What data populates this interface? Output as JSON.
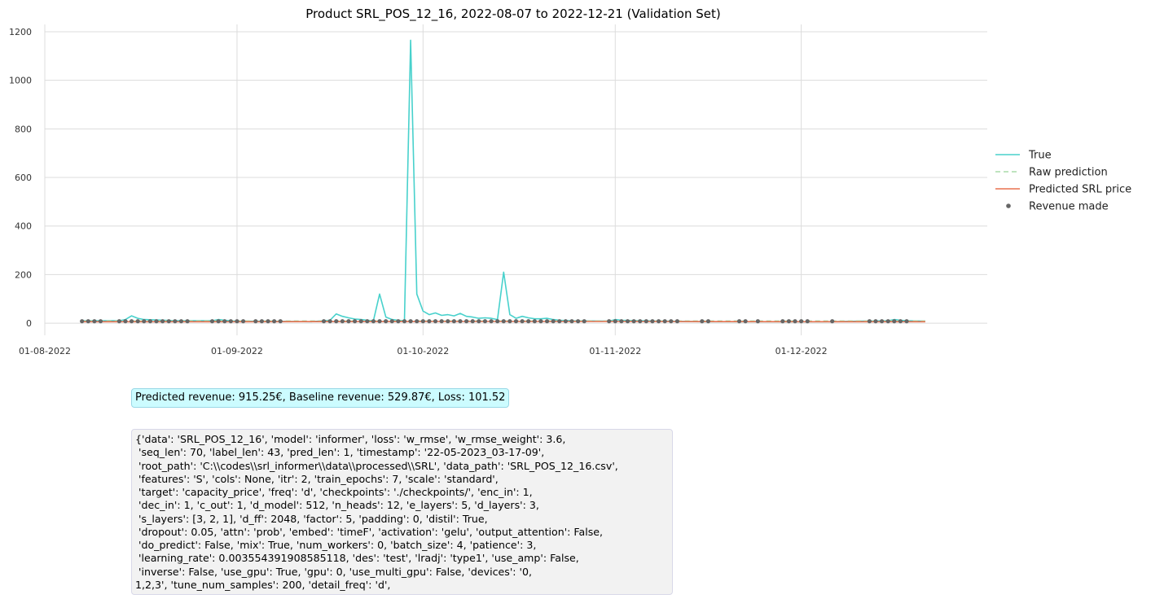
{
  "chart_data": {
    "type": "line",
    "title": "Product SRL_POS_12_16, 2022-08-07 to 2022-12-21 (Validation Set)",
    "xlabel": "",
    "ylabel": "",
    "x_range": [
      "2022-08-01",
      "2022-12-31"
    ],
    "ylim": [
      -50,
      1230
    ],
    "yticks": [
      0,
      200,
      400,
      600,
      800,
      1000,
      1200
    ],
    "xticks": [
      {
        "date": "2022-08-01",
        "label": "01-08-2022"
      },
      {
        "date": "2022-09-01",
        "label": "01-09-2022"
      },
      {
        "date": "2022-10-01",
        "label": "01-10-2022"
      },
      {
        "date": "2022-11-01",
        "label": "01-11-2022"
      },
      {
        "date": "2022-12-01",
        "label": "01-12-2022"
      }
    ],
    "grid": true,
    "legend_position": "right",
    "series": [
      {
        "name": "True",
        "style": "solid",
        "color": "#48d1cc",
        "points": [
          [
            "2022-08-07",
            10
          ],
          [
            "2022-08-13",
            10
          ],
          [
            "2022-08-14",
            15
          ],
          [
            "2022-08-15",
            30
          ],
          [
            "2022-08-16",
            20
          ],
          [
            "2022-08-17",
            15
          ],
          [
            "2022-08-22",
            10
          ],
          [
            "2022-08-28",
            10
          ],
          [
            "2022-08-29",
            15
          ],
          [
            "2022-08-30",
            12
          ],
          [
            "2022-09-01",
            8
          ],
          [
            "2022-09-06",
            8
          ],
          [
            "2022-09-13",
            6
          ],
          [
            "2022-09-14",
            8
          ],
          [
            "2022-09-15",
            10
          ],
          [
            "2022-09-16",
            12
          ],
          [
            "2022-09-17",
            38
          ],
          [
            "2022-09-18",
            28
          ],
          [
            "2022-09-19",
            22
          ],
          [
            "2022-09-20",
            17
          ],
          [
            "2022-09-21",
            15
          ],
          [
            "2022-09-22",
            12
          ],
          [
            "2022-09-23",
            10
          ],
          [
            "2022-09-24",
            120
          ],
          [
            "2022-09-25",
            25
          ],
          [
            "2022-09-26",
            15
          ],
          [
            "2022-09-27",
            12
          ],
          [
            "2022-09-28",
            10
          ],
          [
            "2022-09-29",
            1165
          ],
          [
            "2022-09-30",
            120
          ],
          [
            "2022-10-01",
            50
          ],
          [
            "2022-10-02",
            35
          ],
          [
            "2022-10-03",
            42
          ],
          [
            "2022-10-04",
            32
          ],
          [
            "2022-10-05",
            35
          ],
          [
            "2022-10-06",
            30
          ],
          [
            "2022-10-07",
            40
          ],
          [
            "2022-10-08",
            28
          ],
          [
            "2022-10-09",
            25
          ],
          [
            "2022-10-10",
            20
          ],
          [
            "2022-10-11",
            22
          ],
          [
            "2022-10-12",
            20
          ],
          [
            "2022-10-13",
            15
          ],
          [
            "2022-10-14",
            210
          ],
          [
            "2022-10-15",
            35
          ],
          [
            "2022-10-16",
            20
          ],
          [
            "2022-10-17",
            28
          ],
          [
            "2022-10-18",
            22
          ],
          [
            "2022-10-19",
            18
          ],
          [
            "2022-10-20",
            18
          ],
          [
            "2022-10-21",
            20
          ],
          [
            "2022-10-22",
            15
          ],
          [
            "2022-10-23",
            12
          ],
          [
            "2022-10-25",
            10
          ],
          [
            "2022-10-31",
            8
          ],
          [
            "2022-11-01",
            15
          ],
          [
            "2022-11-02",
            12
          ],
          [
            "2022-11-05",
            10
          ],
          [
            "2022-11-10",
            8
          ],
          [
            "2022-11-15",
            6
          ],
          [
            "2022-11-25",
            6
          ],
          [
            "2022-12-05",
            6
          ],
          [
            "2022-12-10",
            8
          ],
          [
            "2022-12-15",
            10
          ],
          [
            "2022-12-16",
            15
          ],
          [
            "2022-12-17",
            12
          ],
          [
            "2022-12-18",
            10
          ],
          [
            "2022-12-21",
            8
          ]
        ]
      },
      {
        "name": "Raw prediction",
        "style": "dashed",
        "color": "#a8dba8",
        "points": [
          [
            "2022-08-07",
            9
          ],
          [
            "2022-09-15",
            9
          ],
          [
            "2022-10-15",
            9
          ],
          [
            "2022-11-15",
            9
          ],
          [
            "2022-12-21",
            9
          ]
        ]
      },
      {
        "name": "Predicted SRL price",
        "style": "solid",
        "color": "#e8704f",
        "points": [
          [
            "2022-08-07",
            6
          ],
          [
            "2022-09-01",
            6
          ],
          [
            "2022-10-01",
            7
          ],
          [
            "2022-11-01",
            7
          ],
          [
            "2022-12-01",
            6
          ],
          [
            "2022-12-21",
            6
          ]
        ]
      },
      {
        "name": "Revenue made",
        "style": "points",
        "color": "#666666",
        "dates": [
          "2022-08-07",
          "2022-08-08",
          "2022-08-09",
          "2022-08-10",
          "2022-08-13",
          "2022-08-14",
          "2022-08-15",
          "2022-08-16",
          "2022-08-17",
          "2022-08-18",
          "2022-08-19",
          "2022-08-20",
          "2022-08-21",
          "2022-08-22",
          "2022-08-23",
          "2022-08-24",
          "2022-08-28",
          "2022-08-29",
          "2022-08-30",
          "2022-08-31",
          "2022-09-01",
          "2022-09-02",
          "2022-09-04",
          "2022-09-05",
          "2022-09-06",
          "2022-09-07",
          "2022-09-08",
          "2022-09-15",
          "2022-09-16",
          "2022-09-17",
          "2022-09-18",
          "2022-09-19",
          "2022-09-20",
          "2022-09-21",
          "2022-09-22",
          "2022-09-23",
          "2022-09-24",
          "2022-09-25",
          "2022-09-26",
          "2022-09-27",
          "2022-09-28",
          "2022-09-29",
          "2022-09-30",
          "2022-10-01",
          "2022-10-02",
          "2022-10-03",
          "2022-10-04",
          "2022-10-05",
          "2022-10-06",
          "2022-10-07",
          "2022-10-08",
          "2022-10-09",
          "2022-10-10",
          "2022-10-11",
          "2022-10-12",
          "2022-10-13",
          "2022-10-14",
          "2022-10-15",
          "2022-10-16",
          "2022-10-17",
          "2022-10-18",
          "2022-10-19",
          "2022-10-20",
          "2022-10-21",
          "2022-10-22",
          "2022-10-23",
          "2022-10-24",
          "2022-10-25",
          "2022-10-26",
          "2022-10-27",
          "2022-10-31",
          "2022-11-01",
          "2022-11-02",
          "2022-11-03",
          "2022-11-04",
          "2022-11-05",
          "2022-11-06",
          "2022-11-07",
          "2022-11-08",
          "2022-11-09",
          "2022-11-10",
          "2022-11-11",
          "2022-11-15",
          "2022-11-16",
          "2022-11-21",
          "2022-11-22",
          "2022-11-24",
          "2022-11-28",
          "2022-11-29",
          "2022-11-30",
          "2022-12-01",
          "2022-12-02",
          "2022-12-06",
          "2022-12-12",
          "2022-12-13",
          "2022-12-14",
          "2022-12-15",
          "2022-12-16",
          "2022-12-17",
          "2022-12-18"
        ],
        "value": 8
      }
    ]
  },
  "revenue_summary": "Predicted revenue: 915.25€, Baseline revenue: 529.87€, Loss: 101.52",
  "params_text": "{'data': 'SRL_POS_12_16', 'model': 'informer', 'loss': 'w_rmse', 'w_rmse_weight': 3.6,\n 'seq_len': 70, 'label_len': 43, 'pred_len': 1, 'timestamp': '22-05-2023_03-17-09',\n 'root_path': 'C:\\\\codes\\\\srl_informer\\\\data\\\\processed\\\\SRL', 'data_path': 'SRL_POS_12_16.csv',\n 'features': 'S', 'cols': None, 'itr': 2, 'train_epochs': 7, 'scale': 'standard',\n 'target': 'capacity_price', 'freq': 'd', 'checkpoints': './checkpoints/', 'enc_in': 1,\n 'dec_in': 1, 'c_out': 1, 'd_model': 512, 'n_heads': 12, 'e_layers': 5, 'd_layers': 3,\n 's_layers': [3, 2, 1], 'd_ff': 2048, 'factor': 5, 'padding': 0, 'distil': True,\n 'dropout': 0.05, 'attn': 'prob', 'embed': 'timeF', 'activation': 'gelu', 'output_attention': False,\n 'do_predict': False, 'mix': True, 'num_workers': 0, 'batch_size': 4, 'patience': 3,\n 'learning_rate': 0.003554391908585118, 'des': 'test', 'lradj': 'type1', 'use_amp': False,\n 'inverse': False, 'use_gpu': True, 'gpu': 0, 'use_multi_gpu': False, 'devices': '0,\n1,2,3', 'tune_num_samples': 200, 'detail_freq': 'd',"
}
